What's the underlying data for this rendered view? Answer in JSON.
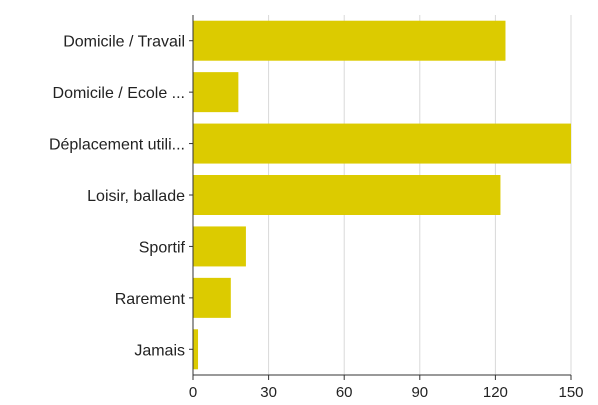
{
  "chart_data": {
    "type": "bar",
    "orientation": "horizontal",
    "categories": [
      "Domicile / Travail",
      "Domicile / Ecole ...",
      "Déplacement utili...",
      "Loisir, ballade",
      "Sportif",
      "Rarement",
      "Jamais"
    ],
    "values": [
      124,
      18,
      150,
      122,
      21,
      15,
      2
    ],
    "xlim": [
      0,
      150
    ],
    "xticks": [
      0,
      30,
      60,
      90,
      120,
      150
    ],
    "grid": true,
    "legend": "none",
    "colors": {
      "bar": "#dccb00"
    }
  }
}
